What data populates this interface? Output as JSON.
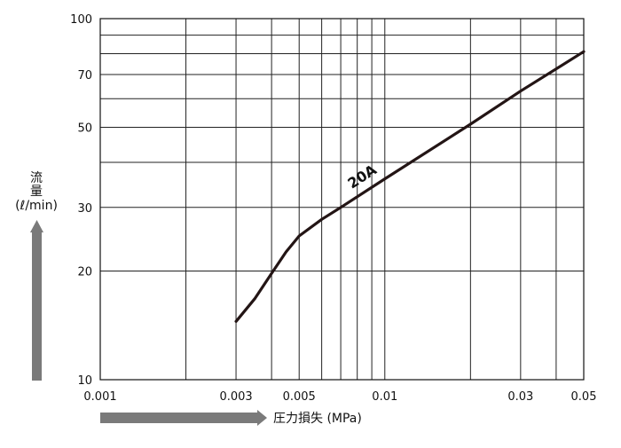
{
  "chart_data": {
    "type": "line",
    "title": "",
    "xlabel": "圧力損失 (MPa)",
    "ylabel": [
      "流",
      "量",
      "(ℓ/min)"
    ],
    "x_scale": "log",
    "y_scale": "log",
    "xlim": [
      0.001,
      0.05
    ],
    "ylim": [
      10,
      100
    ],
    "x_ticks": [
      {
        "value": 0.001,
        "label": "0.001"
      },
      {
        "value": 0.003,
        "label": "0.003"
      },
      {
        "value": 0.005,
        "label": "0.005"
      },
      {
        "value": 0.01,
        "label": "0.01"
      },
      {
        "value": 0.03,
        "label": "0.03"
      },
      {
        "value": 0.05,
        "label": "0.05"
      }
    ],
    "y_ticks": [
      {
        "value": 10,
        "label": "10"
      },
      {
        "value": 20,
        "label": "20"
      },
      {
        "value": 30,
        "label": "30"
      },
      {
        "value": 50,
        "label": "50"
      },
      {
        "value": 70,
        "label": "70"
      },
      {
        "value": 100,
        "label": "100"
      }
    ],
    "x_grid": [
      0.002,
      0.003,
      0.004,
      0.005,
      0.006,
      0.007,
      0.008,
      0.009,
      0.01,
      0.02,
      0.03,
      0.04
    ],
    "y_grid": [
      20,
      30,
      40,
      50,
      60,
      70,
      80,
      90
    ],
    "grid": true,
    "series": [
      {
        "name": "20A",
        "color": "#231515",
        "points": [
          {
            "x": 0.003,
            "y": 14.5
          },
          {
            "x": 0.0035,
            "y": 16.8
          },
          {
            "x": 0.004,
            "y": 19.7
          },
          {
            "x": 0.0045,
            "y": 22.6
          },
          {
            "x": 0.005,
            "y": 25.0
          },
          {
            "x": 0.006,
            "y": 27.8
          },
          {
            "x": 0.007,
            "y": 30.0
          },
          {
            "x": 0.01,
            "y": 36.0
          },
          {
            "x": 0.02,
            "y": 51.0
          },
          {
            "x": 0.03,
            "y": 63.0
          },
          {
            "x": 0.05,
            "y": 81.0
          }
        ]
      }
    ]
  }
}
